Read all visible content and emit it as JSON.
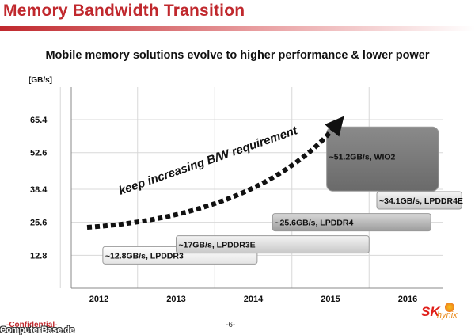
{
  "slide": {
    "title": "Memory Bandwidth Transition",
    "subtitle": "Mobile memory solutions evolve to higher performance & lower power",
    "footer_confidential": "-Confidential-",
    "footer_page": "-6-",
    "logo_text": "SK hynix",
    "watermark": "ComputerBase.de"
  },
  "chart_data": {
    "type": "bar",
    "orientation": "horizontal-range",
    "y_unit_label": "[GB/s]",
    "y_ticks": [
      12.8,
      25.6,
      38.4,
      52.6,
      65.4
    ],
    "ylim": [
      0,
      78
    ],
    "x_ticks": [
      "2012",
      "2013",
      "2014",
      "2015",
      "2016"
    ],
    "grid": true,
    "bars": [
      {
        "label": "~12.8GB/s, LPDDR3",
        "value": 12.8,
        "start": 2012.05,
        "end": 2014.05,
        "style": "white"
      },
      {
        "label": "~17GB/s, LPDDR3E",
        "value": 17,
        "start": 2013.0,
        "end": 2015.5,
        "style": "light"
      },
      {
        "label": "~25.6GB/s, LPDDR4",
        "value": 25.6,
        "start": 2014.25,
        "end": 2016.3,
        "style": "mid"
      },
      {
        "label": "~34.1GB/s, LPDDR4E",
        "value": 34.1,
        "start": 2015.6,
        "end": 2016.7,
        "style": "light"
      },
      {
        "label": "~51.2GB/s, WIO2",
        "value": 51.2,
        "start": 2014.95,
        "end": 2016.4,
        "style": "dark"
      }
    ],
    "annotation": "keep increasing B/W requirement"
  }
}
